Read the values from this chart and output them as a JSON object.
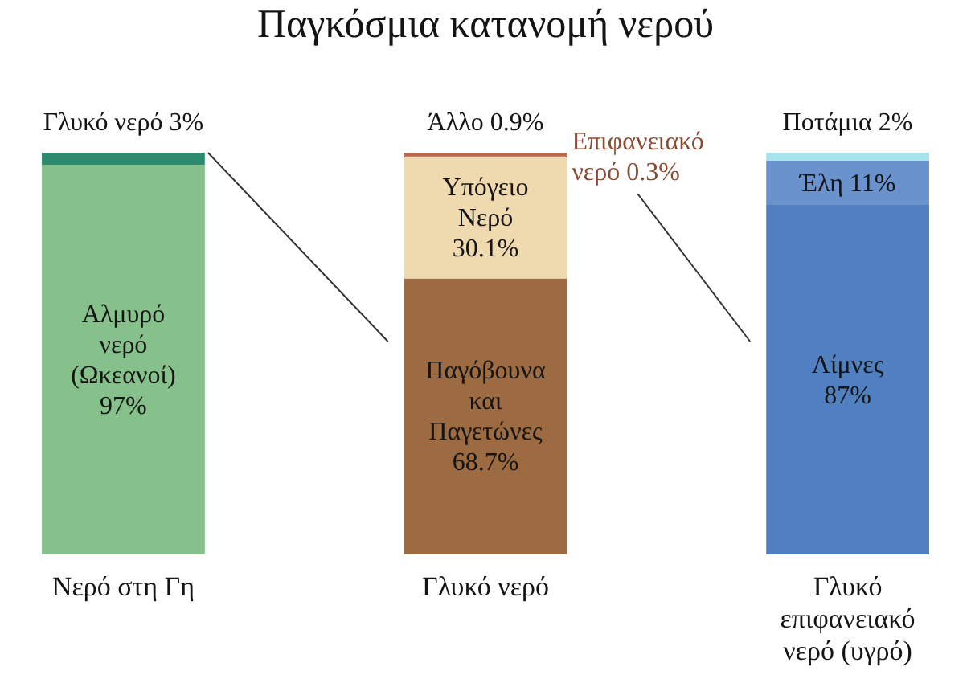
{
  "chart_data": {
    "type": "bar",
    "stacked": true,
    "title": "Παγκόσμια κατανομή νερού",
    "categories": [
      "Νερό στη Γη",
      "Γλυκό νερό",
      "Γλυκό επιφανειακό νερό (υγρό)"
    ],
    "series": [
      {
        "name": "Αλμυρό νερό (Ωκεανοί)",
        "color": "#86c08a",
        "values": [
          97,
          null,
          null
        ],
        "value_labels": [
          "97%",
          null,
          null
        ]
      },
      {
        "name": "Γλυκό νερό",
        "color": "#2e8b6f",
        "values": [
          3,
          null,
          null
        ],
        "value_labels": [
          "3%",
          null,
          null
        ]
      },
      {
        "name": "Παγόβουνα και Παγετώνες",
        "color": "#9c6b41",
        "values": [
          null,
          68.7,
          null
        ],
        "value_labels": [
          null,
          "68.7%",
          null
        ]
      },
      {
        "name": "Υπόγειο Νερό",
        "color": "#efd9ae",
        "values": [
          null,
          30.1,
          null
        ],
        "value_labels": [
          null,
          "30.1%",
          null
        ]
      },
      {
        "name": "Επιφανειακό νερό",
        "color": "#8b4a32",
        "values": [
          null,
          0.3,
          null
        ],
        "value_labels": [
          null,
          "0.3%",
          null
        ]
      },
      {
        "name": "Άλλο",
        "color": "#b8694c",
        "values": [
          null,
          0.9,
          null
        ],
        "value_labels": [
          null,
          "0.9%",
          null
        ]
      },
      {
        "name": "Λίμνες",
        "color": "#5080c0",
        "values": [
          null,
          null,
          87
        ],
        "value_labels": [
          null,
          null,
          "87%"
        ]
      },
      {
        "name": "Έλη",
        "color": "#6a93cd",
        "values": [
          null,
          null,
          11
        ],
        "value_labels": [
          null,
          null,
          "11%"
        ]
      },
      {
        "name": "Ποτάμια",
        "color": "#a6e4ec",
        "values": [
          null,
          null,
          2
        ],
        "value_labels": [
          null,
          null,
          "2%"
        ]
      }
    ],
    "ylim": [
      0,
      100
    ],
    "tick_labels": "x"
  }
}
